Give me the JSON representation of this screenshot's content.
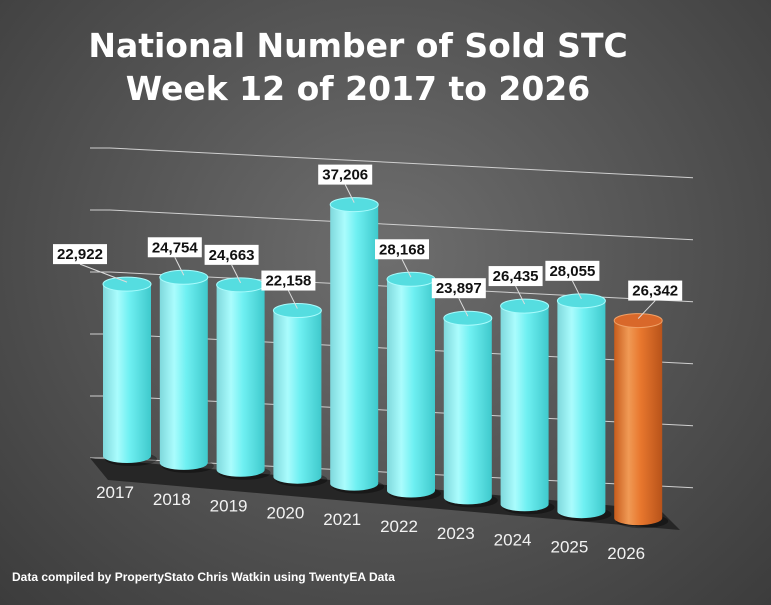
{
  "chart_data": {
    "type": "bar",
    "title": "National Number of  Sold STC",
    "subtitle": "Week 12 of 2017 to 2026",
    "categories": [
      "2017",
      "2018",
      "2019",
      "2020",
      "2021",
      "2022",
      "2023",
      "2024",
      "2025",
      "2026"
    ],
    "values": [
      22922,
      24754,
      24663,
      22158,
      37206,
      28168,
      23897,
      26435,
      28055,
      26342
    ],
    "value_labels": [
      "22,922",
      "24,754",
      "24,663",
      "22,158",
      "37,206",
      "28,168",
      "23,897",
      "26,435",
      "28,055",
      "26,342"
    ],
    "ylim": [
      0,
      50000
    ],
    "grid": true,
    "legend": "none",
    "colors": {
      "bar": "#5fe8ea",
      "highlight": "#e8772e",
      "background": "#575757"
    },
    "highlight_category": "2026"
  },
  "footer": {
    "credit": "Data compiled by PropertyStato Chris Watkin using TwentyEA Data"
  }
}
